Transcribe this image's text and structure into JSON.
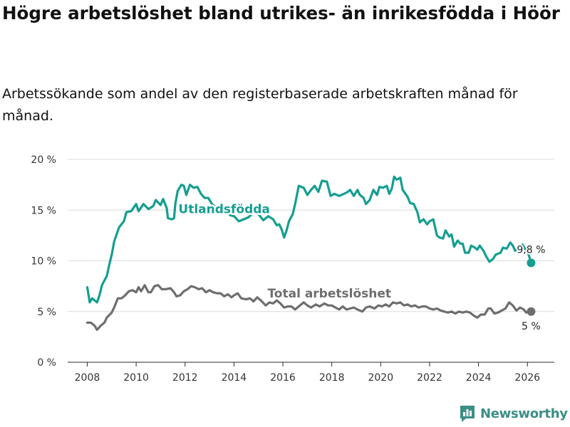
{
  "title": "Högre arbetslöshet bland utrikes- än inrikesfödda i Höör",
  "subtitle": "Arbetssökande som andel av den registerbaserade arbetskraften månad för månad.",
  "brand": {
    "name": "Newsworthy",
    "icon": "newsworthy-logo-icon",
    "color": "#3a8f86"
  },
  "chart_data": {
    "type": "line",
    "title": "Högre arbetslöshet bland utrikes- än inrikesfödda i Höör",
    "xlabel": "",
    "ylabel": "",
    "xlim": [
      2007.2,
      2027.1
    ],
    "ylim": [
      0,
      20
    ],
    "grid": true,
    "x_ticks": [
      2008,
      2010,
      2012,
      2014,
      2016,
      2018,
      2020,
      2022,
      2024,
      2026
    ],
    "y_ticks": [
      {
        "value": 0,
        "label": "0 %"
      },
      {
        "value": 5,
        "label": "5 %"
      },
      {
        "value": 10,
        "label": "10 %"
      },
      {
        "value": 15,
        "label": "15 %"
      },
      {
        "value": 20,
        "label": "20 %"
      }
    ],
    "series": [
      {
        "name": "Utlandsfödda",
        "color": "#159e92",
        "label": "Utlandsfödda",
        "label_at": [
          2013.6,
          14.7
        ],
        "end_label": "9,8 %",
        "points": [
          [
            2008.0,
            7.4
          ],
          [
            2008.1,
            5.9
          ],
          [
            2008.2,
            6.3
          ],
          [
            2008.4,
            5.9
          ],
          [
            2008.5,
            6.6
          ],
          [
            2008.6,
            7.6
          ],
          [
            2008.8,
            8.5
          ],
          [
            2008.9,
            9.6
          ],
          [
            2009.0,
            10.6
          ],
          [
            2009.1,
            11.9
          ],
          [
            2009.3,
            13.3
          ],
          [
            2009.5,
            13.9
          ],
          [
            2009.6,
            14.8
          ],
          [
            2009.8,
            14.9
          ],
          [
            2010.0,
            15.6
          ],
          [
            2010.1,
            14.9
          ],
          [
            2010.3,
            15.6
          ],
          [
            2010.5,
            15.1
          ],
          [
            2010.7,
            15.4
          ],
          [
            2010.8,
            16.0
          ],
          [
            2011.0,
            15.5
          ],
          [
            2011.1,
            16.1
          ],
          [
            2011.25,
            15.2
          ],
          [
            2011.3,
            14.2
          ],
          [
            2011.45,
            14.1
          ],
          [
            2011.55,
            14.2
          ],
          [
            2011.6,
            15.6
          ],
          [
            2011.7,
            16.9
          ],
          [
            2011.85,
            17.5
          ],
          [
            2011.95,
            17.4
          ],
          [
            2012.05,
            16.5
          ],
          [
            2012.2,
            17.5
          ],
          [
            2012.35,
            17.2
          ],
          [
            2012.5,
            17.3
          ],
          [
            2012.65,
            16.6
          ],
          [
            2012.8,
            16.2
          ],
          [
            2012.95,
            16.2
          ],
          [
            2013.1,
            15.6
          ],
          [
            2013.3,
            15.2
          ],
          [
            2013.5,
            15.0
          ],
          [
            2013.7,
            14.8
          ],
          [
            2013.85,
            14.5
          ],
          [
            2014.0,
            14.4
          ],
          [
            2014.2,
            13.9
          ],
          [
            2014.4,
            14.1
          ],
          [
            2014.6,
            14.3
          ],
          [
            2014.8,
            14.8
          ],
          [
            2015.0,
            14.6
          ],
          [
            2015.2,
            14.0
          ],
          [
            2015.4,
            14.4
          ],
          [
            2015.6,
            14.1
          ],
          [
            2015.75,
            13.5
          ],
          [
            2015.85,
            13.6
          ],
          [
            2015.95,
            13.1
          ],
          [
            2016.05,
            12.3
          ],
          [
            2016.15,
            13.0
          ],
          [
            2016.25,
            13.9
          ],
          [
            2016.4,
            14.6
          ],
          [
            2016.5,
            15.6
          ],
          [
            2016.65,
            17.4
          ],
          [
            2016.85,
            17.2
          ],
          [
            2017.0,
            16.5
          ],
          [
            2017.15,
            17.0
          ],
          [
            2017.3,
            17.4
          ],
          [
            2017.45,
            16.8
          ],
          [
            2017.6,
            17.9
          ],
          [
            2017.8,
            17.8
          ],
          [
            2017.95,
            16.4
          ],
          [
            2018.1,
            16.6
          ],
          [
            2018.3,
            16.4
          ],
          [
            2018.5,
            16.6
          ],
          [
            2018.65,
            16.8
          ],
          [
            2018.75,
            17.0
          ],
          [
            2018.9,
            16.4
          ],
          [
            2019.05,
            17.0
          ],
          [
            2019.15,
            16.5
          ],
          [
            2019.3,
            16.2
          ],
          [
            2019.4,
            15.6
          ],
          [
            2019.55,
            16.0
          ],
          [
            2019.7,
            17.0
          ],
          [
            2019.85,
            16.5
          ],
          [
            2019.95,
            17.3
          ],
          [
            2020.1,
            17.2
          ],
          [
            2020.25,
            17.4
          ],
          [
            2020.35,
            16.6
          ],
          [
            2020.45,
            17.1
          ],
          [
            2020.55,
            18.3
          ],
          [
            2020.65,
            18.0
          ],
          [
            2020.8,
            18.2
          ],
          [
            2020.9,
            17.0
          ],
          [
            2021.1,
            16.3
          ],
          [
            2021.2,
            15.7
          ],
          [
            2021.35,
            15.6
          ],
          [
            2021.5,
            14.8
          ],
          [
            2021.6,
            13.8
          ],
          [
            2021.75,
            14.1
          ],
          [
            2021.9,
            13.6
          ],
          [
            2022.0,
            13.9
          ],
          [
            2022.15,
            14.1
          ],
          [
            2022.3,
            12.5
          ],
          [
            2022.4,
            12.3
          ],
          [
            2022.55,
            12.2
          ],
          [
            2022.65,
            13.0
          ],
          [
            2022.8,
            12.4
          ],
          [
            2022.9,
            12.6
          ],
          [
            2023.0,
            11.4
          ],
          [
            2023.15,
            12.0
          ],
          [
            2023.25,
            11.7
          ],
          [
            2023.35,
            11.7
          ],
          [
            2023.45,
            10.8
          ],
          [
            2023.6,
            10.8
          ],
          [
            2023.7,
            11.5
          ],
          [
            2023.85,
            11.3
          ],
          [
            2023.95,
            11.1
          ],
          [
            2024.05,
            11.5
          ],
          [
            2024.2,
            11.0
          ],
          [
            2024.3,
            10.5
          ],
          [
            2024.45,
            9.9
          ],
          [
            2024.6,
            10.2
          ],
          [
            2024.7,
            10.6
          ],
          [
            2024.9,
            10.8
          ],
          [
            2025.0,
            11.3
          ],
          [
            2025.15,
            11.2
          ],
          [
            2025.3,
            11.8
          ],
          [
            2025.4,
            11.5
          ],
          [
            2025.5,
            11.0
          ],
          [
            2025.7,
            11.3
          ],
          [
            2025.8,
            11.6
          ],
          [
            2025.95,
            11.0
          ],
          [
            2026.05,
            10.6
          ],
          [
            2026.15,
            9.8
          ]
        ]
      },
      {
        "name": "Total arbetslöshet",
        "color": "#6e6e6e",
        "label": "Total arbetslöshet",
        "label_at": [
          2017.9,
          6.4
        ],
        "end_label": "5 %",
        "points": [
          [
            2008.0,
            3.9
          ],
          [
            2008.15,
            3.9
          ],
          [
            2008.3,
            3.6
          ],
          [
            2008.4,
            3.2
          ],
          [
            2008.55,
            3.6
          ],
          [
            2008.7,
            3.9
          ],
          [
            2008.8,
            4.4
          ],
          [
            2009.0,
            4.9
          ],
          [
            2009.1,
            5.4
          ],
          [
            2009.25,
            6.3
          ],
          [
            2009.4,
            6.3
          ],
          [
            2009.55,
            6.6
          ],
          [
            2009.7,
            7.0
          ],
          [
            2009.85,
            7.1
          ],
          [
            2010.0,
            6.9
          ],
          [
            2010.1,
            7.4
          ],
          [
            2010.2,
            7.0
          ],
          [
            2010.35,
            7.6
          ],
          [
            2010.5,
            6.9
          ],
          [
            2010.6,
            6.9
          ],
          [
            2010.75,
            7.5
          ],
          [
            2010.9,
            7.6
          ],
          [
            2011.05,
            7.2
          ],
          [
            2011.2,
            7.2
          ],
          [
            2011.4,
            7.3
          ],
          [
            2011.55,
            6.9
          ],
          [
            2011.65,
            6.5
          ],
          [
            2011.8,
            6.6
          ],
          [
            2011.95,
            7.0
          ],
          [
            2012.1,
            7.2
          ],
          [
            2012.25,
            7.5
          ],
          [
            2012.4,
            7.4
          ],
          [
            2012.55,
            7.2
          ],
          [
            2012.7,
            7.3
          ],
          [
            2012.85,
            6.9
          ],
          [
            2013.0,
            7.1
          ],
          [
            2013.15,
            6.9
          ],
          [
            2013.3,
            6.8
          ],
          [
            2013.45,
            6.8
          ],
          [
            2013.6,
            6.5
          ],
          [
            2013.75,
            6.7
          ],
          [
            2013.9,
            6.4
          ],
          [
            2014.0,
            6.6
          ],
          [
            2014.15,
            6.8
          ],
          [
            2014.3,
            6.3
          ],
          [
            2014.5,
            6.2
          ],
          [
            2014.65,
            6.3
          ],
          [
            2014.8,
            6.0
          ],
          [
            2014.95,
            6.4
          ],
          [
            2015.1,
            6.1
          ],
          [
            2015.3,
            5.6
          ],
          [
            2015.45,
            5.9
          ],
          [
            2015.6,
            5.8
          ],
          [
            2015.75,
            6.1
          ],
          [
            2015.9,
            5.8
          ],
          [
            2016.05,
            5.4
          ],
          [
            2016.2,
            5.5
          ],
          [
            2016.35,
            5.5
          ],
          [
            2016.5,
            5.2
          ],
          [
            2016.65,
            5.5
          ],
          [
            2016.85,
            5.9
          ],
          [
            2017.0,
            5.6
          ],
          [
            2017.15,
            5.4
          ],
          [
            2017.35,
            5.7
          ],
          [
            2017.5,
            5.5
          ],
          [
            2017.7,
            5.8
          ],
          [
            2017.85,
            5.6
          ],
          [
            2018.0,
            5.6
          ],
          [
            2018.15,
            5.4
          ],
          [
            2018.3,
            5.2
          ],
          [
            2018.45,
            5.5
          ],
          [
            2018.6,
            5.2
          ],
          [
            2018.75,
            5.3
          ],
          [
            2018.9,
            5.4
          ],
          [
            2019.05,
            5.2
          ],
          [
            2019.25,
            5.0
          ],
          [
            2019.4,
            5.4
          ],
          [
            2019.55,
            5.5
          ],
          [
            2019.75,
            5.3
          ],
          [
            2019.9,
            5.6
          ],
          [
            2020.05,
            5.5
          ],
          [
            2020.2,
            5.7
          ],
          [
            2020.35,
            5.5
          ],
          [
            2020.5,
            5.9
          ],
          [
            2020.65,
            5.8
          ],
          [
            2020.8,
            5.9
          ],
          [
            2020.95,
            5.6
          ],
          [
            2021.1,
            5.7
          ],
          [
            2021.25,
            5.5
          ],
          [
            2021.4,
            5.6
          ],
          [
            2021.55,
            5.4
          ],
          [
            2021.7,
            5.5
          ],
          [
            2021.85,
            5.5
          ],
          [
            2022.0,
            5.3
          ],
          [
            2022.15,
            5.2
          ],
          [
            2022.3,
            5.3
          ],
          [
            2022.45,
            5.1
          ],
          [
            2022.6,
            5.0
          ],
          [
            2022.75,
            4.9
          ],
          [
            2022.9,
            5.0
          ],
          [
            2023.05,
            4.8
          ],
          [
            2023.2,
            5.0
          ],
          [
            2023.35,
            4.9
          ],
          [
            2023.5,
            5.0
          ],
          [
            2023.65,
            4.9
          ],
          [
            2023.8,
            4.6
          ],
          [
            2023.95,
            4.4
          ],
          [
            2024.1,
            4.7
          ],
          [
            2024.25,
            4.7
          ],
          [
            2024.4,
            5.3
          ],
          [
            2024.5,
            5.3
          ],
          [
            2024.65,
            4.8
          ],
          [
            2024.8,
            4.9
          ],
          [
            2024.95,
            5.1
          ],
          [
            2025.1,
            5.3
          ],
          [
            2025.25,
            5.9
          ],
          [
            2025.4,
            5.6
          ],
          [
            2025.55,
            5.1
          ],
          [
            2025.7,
            5.4
          ],
          [
            2025.85,
            5.2
          ],
          [
            2025.95,
            4.9
          ],
          [
            2026.05,
            5.1
          ],
          [
            2026.15,
            5.0
          ]
        ]
      }
    ]
  }
}
